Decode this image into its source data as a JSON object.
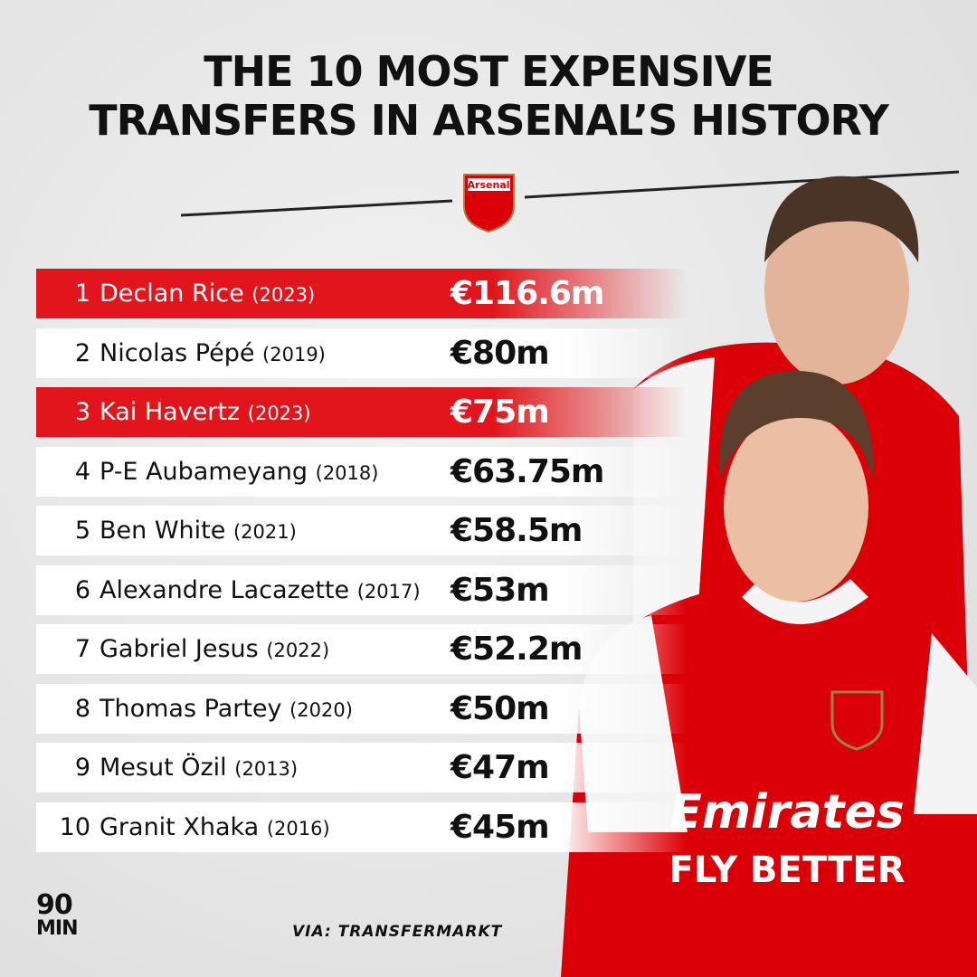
{
  "header": {
    "title_lines": [
      "THE 10 MOST EXPENSIVE",
      "TRANSFERS IN ARSENAL’S HISTORY"
    ],
    "crest": "Arsenal"
  },
  "table": {
    "rows": [
      {
        "rank": 1,
        "name": "Declan Rice",
        "year": "(2023)",
        "fee": "€116.6m",
        "highlight": true
      },
      {
        "rank": 2,
        "name": "Nicolas Pépé",
        "year": "(2019)",
        "fee": "€80m",
        "highlight": false
      },
      {
        "rank": 3,
        "name": "Kai Havertz",
        "year": "(2023)",
        "fee": "€75m",
        "highlight": true
      },
      {
        "rank": 4,
        "name": "P-E Aubameyang",
        "year": "(2018)",
        "fee": "€63.75m",
        "highlight": false
      },
      {
        "rank": 5,
        "name": "Ben White",
        "year": "(2021)",
        "fee": "€58.5m",
        "highlight": false
      },
      {
        "rank": 6,
        "name": "Alexandre Lacazette",
        "year": "(2017)",
        "fee": "€53m",
        "highlight": false
      },
      {
        "rank": 7,
        "name": "Gabriel Jesus",
        "year": "(2022)",
        "fee": "€52.2m",
        "highlight": false
      },
      {
        "rank": 8,
        "name": "Thomas Partey",
        "year": "(2020)",
        "fee": "€50m",
        "highlight": false
      },
      {
        "rank": 9,
        "name": "Mesut Özil",
        "year": "(2013)",
        "fee": "€47m",
        "highlight": false
      },
      {
        "rank": 10,
        "name": "Granit Xhaka",
        "year": "(2016)",
        "fee": "€45m",
        "highlight": false
      }
    ]
  },
  "image": {
    "shirt_text": [
      "Emirates",
      "FLY BETTER"
    ]
  },
  "footer": {
    "logo": [
      "90",
      "MIN"
    ],
    "source": "VIA: TRANSFERMARKT"
  }
}
